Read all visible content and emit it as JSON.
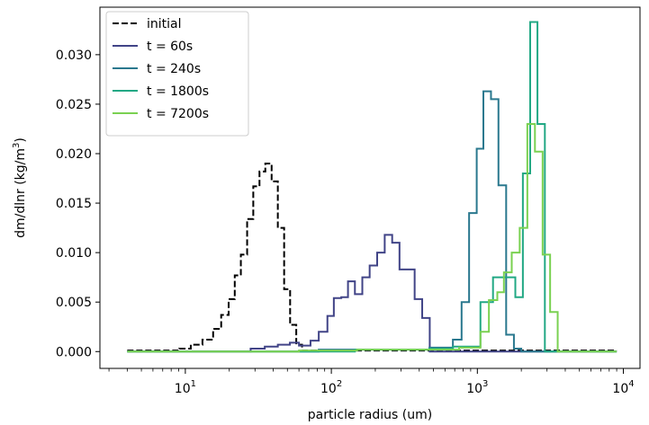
{
  "chart_data": {
    "type": "line",
    "xlabel": "particle radius (um)",
    "ylabel_main": "dm/dlnr (kg/m",
    "ylabel_sup": "3",
    "ylabel_close": ")",
    "xscale": "log",
    "xlim": [
      2.6,
      13000
    ],
    "ylim": [
      -0.0017,
      0.0348
    ],
    "grid": false,
    "legend_position": "top-left",
    "yticks": [
      {
        "value": 0.0,
        "label": "0.000"
      },
      {
        "value": 0.005,
        "label": "0.005"
      },
      {
        "value": 0.01,
        "label": "0.010"
      },
      {
        "value": 0.015,
        "label": "0.015"
      },
      {
        "value": 0.02,
        "label": "0.020"
      },
      {
        "value": 0.025,
        "label": "0.025"
      },
      {
        "value": 0.03,
        "label": "0.030"
      }
    ],
    "xticks": [
      {
        "value": 10,
        "base": "10",
        "exp": "1"
      },
      {
        "value": 100,
        "base": "10",
        "exp": "2"
      },
      {
        "value": 1000,
        "base": "10",
        "exp": "3"
      },
      {
        "value": 10000,
        "base": "10",
        "exp": "4"
      }
    ],
    "series": [
      {
        "name": "initial",
        "color": "#000000",
        "dash": true,
        "edges": [
          4.0,
          9.1,
          10.9,
          13.1,
          15.5,
          17.6,
          19.8,
          21.8,
          24.0,
          26.5,
          29.2,
          32.2,
          35.3,
          39.0,
          43.0,
          47.5,
          52.2,
          57.5,
          63.0,
          9000
        ],
        "values": [
          0.0001,
          0.0003,
          0.0007,
          0.0012,
          0.0023,
          0.0037,
          0.0053,
          0.0077,
          0.0098,
          0.0134,
          0.0167,
          0.0182,
          0.019,
          0.0172,
          0.0125,
          0.0063,
          0.0027,
          0.0007,
          0.0001
        ]
      },
      {
        "name": "t = 60s",
        "color": "#414487",
        "dash": false,
        "edges": [
          4.0,
          28.0,
          35.0,
          43.0,
          52.0,
          60.0,
          72.0,
          82.0,
          94.0,
          104.0,
          117.0,
          130.0,
          145.0,
          163.0,
          183.0,
          206.0,
          232.0,
          261.0,
          293.0,
          330.0,
          372.0,
          419.0,
          472.0,
          9000
        ],
        "values": [
          0.0,
          0.0003,
          0.0005,
          0.0007,
          0.0009,
          0.0006,
          0.0011,
          0.002,
          0.0036,
          0.0054,
          0.0055,
          0.0071,
          0.0058,
          0.0075,
          0.0087,
          0.01,
          0.0118,
          0.011,
          0.0083,
          0.0083,
          0.0053,
          0.0034,
          0.0
        ],
        "tail_value": 0.0
      },
      {
        "name": "t = 240s",
        "color": "#2a788e",
        "dash": false,
        "edges": [
          4.0,
          82.0,
          470.0,
          680.0,
          780.0,
          878.0,
          990.0,
          1100.0,
          1240.0,
          1395.0,
          1575.0,
          1780.0,
          2000.0,
          9000
        ],
        "values": [
          0.0,
          0.0002,
          0.0004,
          0.0012,
          0.005,
          0.014,
          0.0205,
          0.0263,
          0.0255,
          0.0168,
          0.0017,
          0.0003,
          0.0
        ],
        "tail_value": 0.0
      },
      {
        "name": "t = 1800s",
        "color": "#22a884",
        "dash": false,
        "edges": [
          4.0,
          145.0,
          470.0,
          680.0,
          1050.0,
          1280.0,
          1430.0,
          1600.0,
          1820.0,
          2050.0,
          2300.0,
          2580.0,
          2900.0,
          3250.0,
          9000
        ],
        "values": [
          0.0,
          0.0002,
          0.0003,
          0.0005,
          0.005,
          0.0075,
          0.0075,
          0.0075,
          0.0055,
          0.018,
          0.0333,
          0.023,
          0.0,
          0.0
        ],
        "tail_value": 0.0
      },
      {
        "name": "t = 7200s",
        "color": "#7ad151",
        "dash": false,
        "edges": [
          4.0,
          60.0,
          150.0,
          470.0,
          750.0,
          1050.0,
          1200.0,
          1370.0,
          1520.0,
          1720.0,
          1950.0,
          2200.0,
          2480.0,
          2800.0,
          3150.0,
          3550.0,
          9000
        ],
        "values": [
          0.0,
          0.0001,
          0.0002,
          0.0002,
          0.0004,
          0.002,
          0.0052,
          0.006,
          0.008,
          0.01,
          0.0125,
          0.023,
          0.0202,
          0.0098,
          0.004,
          0.0
        ],
        "tail_value": 0.0
      }
    ]
  }
}
